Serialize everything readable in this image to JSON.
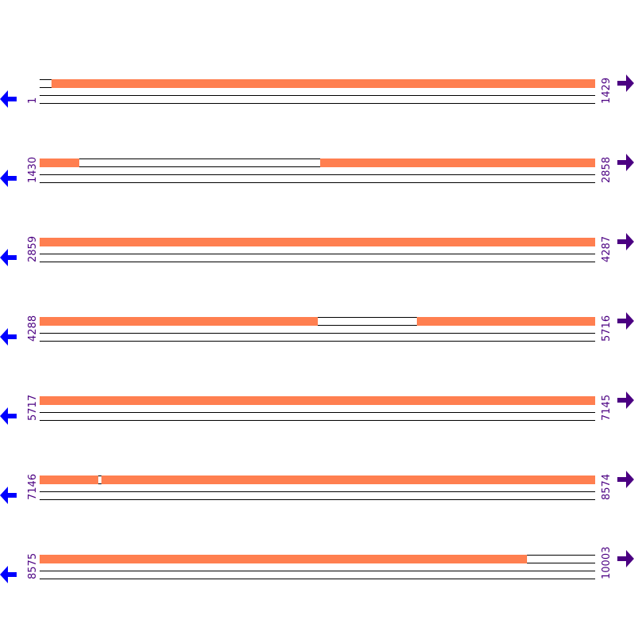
{
  "sequence_length": 10003,
  "residues_per_row": 1429,
  "colors": {
    "covered": "#ff7f50",
    "label": "#4b0082",
    "left_arrow": "#0000ff",
    "right_arrow": "#4b0082"
  },
  "icons": {
    "left": "arrow-left-icon",
    "right": "arrow-right-icon"
  },
  "rows": [
    {
      "start": "1",
      "end": "1429",
      "covered": [
        [
          32,
          1429
        ]
      ]
    },
    {
      "start": "1430",
      "end": "2858",
      "covered": [
        [
          1430,
          1531
        ],
        [
          2151,
          2858
        ]
      ]
    },
    {
      "start": "2859",
      "end": "4287",
      "covered": [
        [
          2859,
          4287
        ]
      ]
    },
    {
      "start": "4288",
      "end": "5716",
      "covered": [
        [
          4288,
          5002
        ],
        [
          5259,
          5716
        ]
      ]
    },
    {
      "start": "5717",
      "end": "7145",
      "covered": [
        [
          5717,
          7145
        ]
      ]
    },
    {
      "start": "7146",
      "end": "8574",
      "covered": [
        [
          7146,
          7295
        ],
        [
          7305,
          8574
        ]
      ]
    },
    {
      "start": "8575",
      "end": "10003",
      "covered": [
        [
          8575,
          9827
        ]
      ]
    }
  ]
}
